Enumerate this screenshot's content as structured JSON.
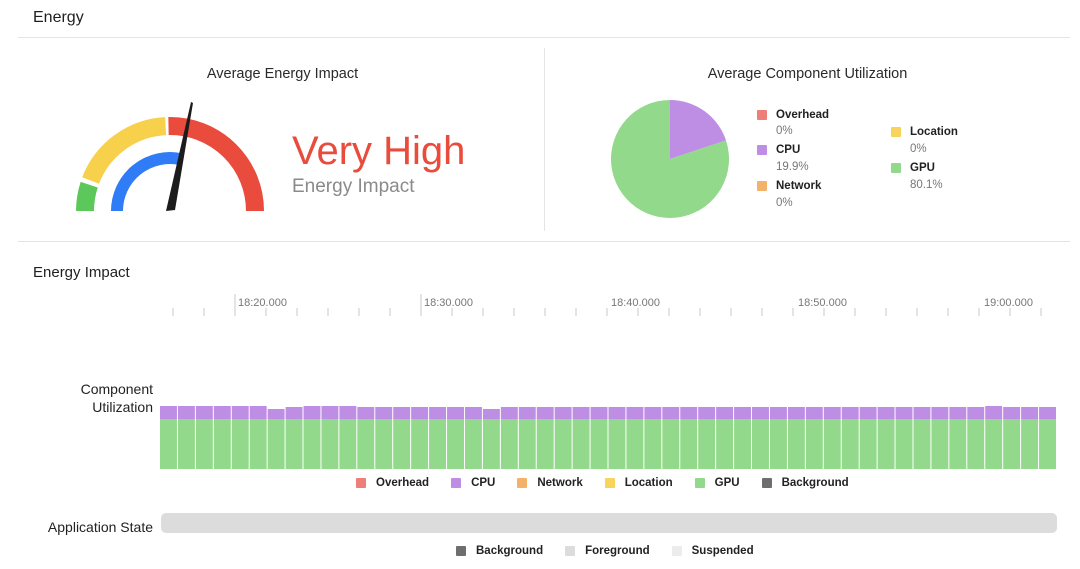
{
  "header": {
    "title": "Energy"
  },
  "energy_panel": {
    "title": "Average Energy Impact",
    "level": "Very High",
    "level_color": "#e94b3c",
    "caption": "Energy Impact",
    "gauge": {
      "colors": {
        "green": "#5cc75a",
        "yellow": "#f7d04c",
        "red": "#e94b3c",
        "blue": "#2f7cf6",
        "needle": "#1c1c1c"
      }
    }
  },
  "component_panel": {
    "title": "Average Component Utilization",
    "components": [
      {
        "name": "Overhead",
        "value": "0%",
        "percent": 0,
        "color": "#ee7f78"
      },
      {
        "name": "CPU",
        "value": "19.9%",
        "percent": 19.9,
        "color": "#be8de4"
      },
      {
        "name": "Network",
        "value": "0%",
        "percent": 0,
        "color": "#f4b169"
      },
      {
        "name": "Location",
        "value": "0%",
        "percent": 0,
        "color": "#f8d45c"
      },
      {
        "name": "GPU",
        "value": "80.1%",
        "percent": 80.1,
        "color": "#93d98b"
      }
    ]
  },
  "timeline": {
    "title": "Energy Impact",
    "ticks": [
      "18:20.000",
      "18:30.000",
      "18:40.000",
      "18:50.000",
      "19:00.000"
    ],
    "component_label_line1": "Component",
    "component_label_line2": "Utilization",
    "bar_cpu_fractions": [
      0.2,
      0.2,
      0.2,
      0.2,
      0.2,
      0.2,
      0.15,
      0.18,
      0.2,
      0.2,
      0.2,
      0.18,
      0.18,
      0.18,
      0.18,
      0.18,
      0.18,
      0.18,
      0.15,
      0.18,
      0.18,
      0.18,
      0.18,
      0.18,
      0.18,
      0.18,
      0.18,
      0.18,
      0.18,
      0.18,
      0.18,
      0.18,
      0.18,
      0.18,
      0.18,
      0.18,
      0.18,
      0.18,
      0.18,
      0.18,
      0.18,
      0.18,
      0.18,
      0.18,
      0.18,
      0.18,
      0.2,
      0.18,
      0.18,
      0.18
    ],
    "legend": [
      {
        "name": "Overhead",
        "color": "#ee7f78"
      },
      {
        "name": "CPU",
        "color": "#be8de4"
      },
      {
        "name": "Network",
        "color": "#f4b169"
      },
      {
        "name": "Location",
        "color": "#f8d45c"
      },
      {
        "name": "GPU",
        "color": "#93d98b"
      },
      {
        "name": "Background",
        "color": "#6e6e6e"
      }
    ],
    "app_state_label": "Application State",
    "app_state_color": "#dcdcdc",
    "app_state_legend": [
      {
        "name": "Background",
        "color": "#6e6e6e"
      },
      {
        "name": "Foreground",
        "color": "#dcdcdc"
      },
      {
        "name": "Suspended",
        "color": "#ececec"
      }
    ]
  }
}
